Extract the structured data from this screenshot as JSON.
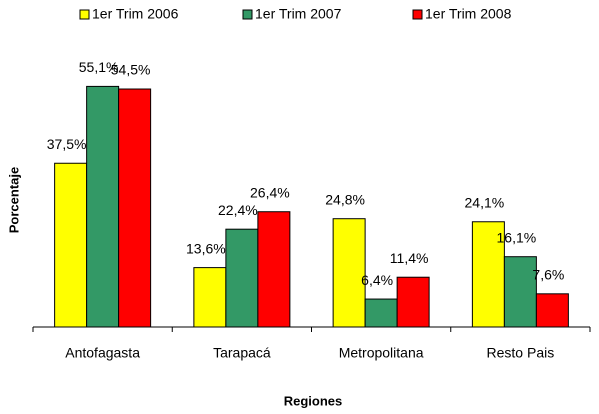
{
  "chart_data": {
    "type": "bar",
    "x_label": "Regiones",
    "y_label": "Porcentaje",
    "categories": [
      "Antofagasta",
      "Tarapacá",
      "Metropolitana",
      "Resto Pais"
    ],
    "series": [
      {
        "name": "1er Trim 2006",
        "color": "#ffff00",
        "values": [
          37.5,
          13.6,
          24.8,
          24.1
        ],
        "value_labels": [
          "37,5%",
          "13,6%",
          "24,8%",
          "24,1%"
        ]
      },
      {
        "name": "1er Trim 2007",
        "color": "#339966",
        "values": [
          55.1,
          22.4,
          6.4,
          16.1
        ],
        "value_labels": [
          "55,1%",
          "22,4%",
          "6,4%",
          "16,1%"
        ]
      },
      {
        "name": "1er Trim 2008",
        "color": "#ff0000",
        "values": [
          54.5,
          26.4,
          11.4,
          7.6
        ],
        "value_labels": [
          "54,5%",
          "26,4%",
          "11,4%",
          "7,6%"
        ]
      }
    ],
    "ylim": [
      0,
      60
    ],
    "legend": "top"
  }
}
